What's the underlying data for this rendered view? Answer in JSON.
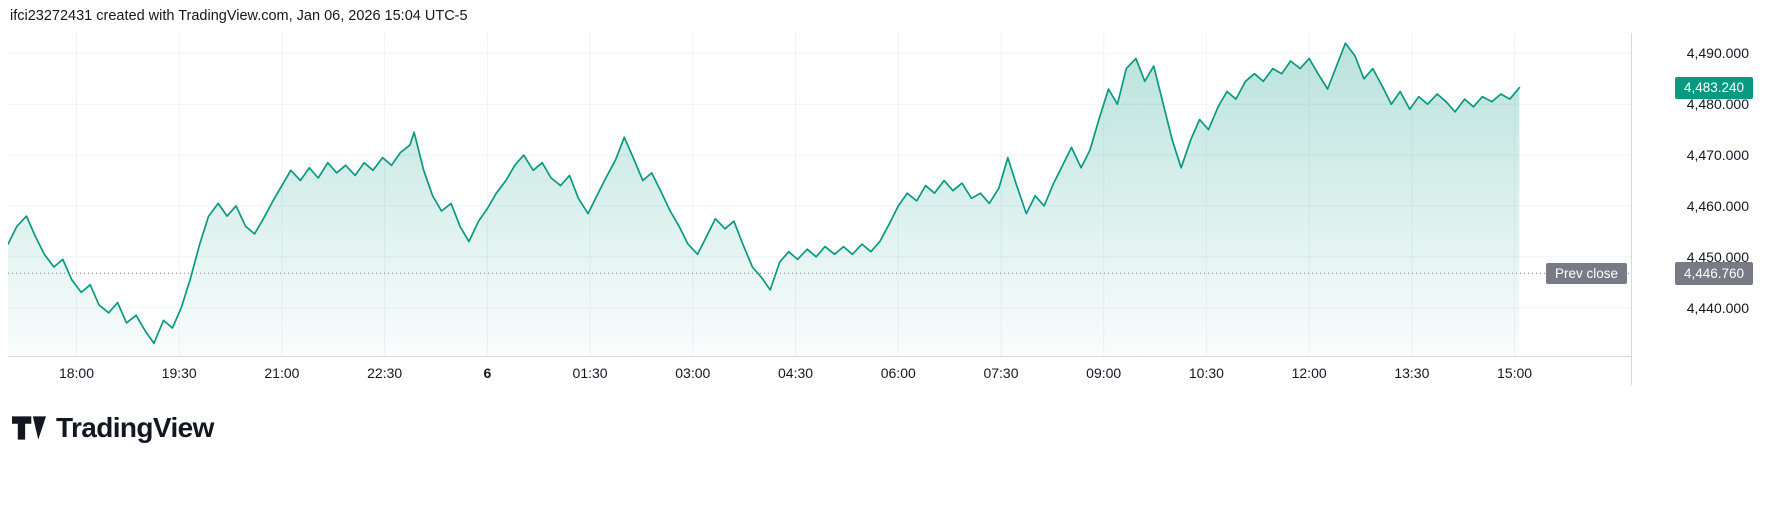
{
  "header": {
    "attribution": "ifci23272431 created with TradingView.com, Jan 06, 2026 15:04 UTC-5"
  },
  "footer": {
    "logo_text": "TradingView"
  },
  "chart_data": {
    "type": "area",
    "line_color": "#089981",
    "area_top_color": "#089981",
    "last_price": 4483.24,
    "last_price_label": "4,483.240",
    "prev_close": {
      "label": "Prev close",
      "value": 4446.76,
      "value_label": "4,446.760",
      "color": "#787b86"
    },
    "y_axis": {
      "min": 4430.5,
      "max": 4494,
      "ticks": [
        {
          "value": 4440,
          "label": "4,440.000"
        },
        {
          "value": 4450,
          "label": "4,450.000"
        },
        {
          "value": 4460,
          "label": "4,460.000"
        },
        {
          "value": 4470,
          "label": "4,470.000"
        },
        {
          "value": 4480,
          "label": "4,480.000"
        },
        {
          "value": 4490,
          "label": "4,490.000"
        }
      ]
    },
    "x_axis": {
      "start_time": "17:00",
      "min_hours": 0,
      "max_hours": 23.7,
      "ticks": [
        {
          "h": 1,
          "label": "18:00"
        },
        {
          "h": 2.5,
          "label": "19:30"
        },
        {
          "h": 4,
          "label": "21:00"
        },
        {
          "h": 5.5,
          "label": "22:30"
        },
        {
          "h": 7,
          "label": "6",
          "emphasis": true
        },
        {
          "h": 8.5,
          "label": "01:30"
        },
        {
          "h": 10,
          "label": "03:00"
        },
        {
          "h": 11.5,
          "label": "04:30"
        },
        {
          "h": 13,
          "label": "06:00"
        },
        {
          "h": 14.5,
          "label": "07:30"
        },
        {
          "h": 16,
          "label": "09:00"
        },
        {
          "h": 17.5,
          "label": "10:30"
        },
        {
          "h": 19,
          "label": "12:00"
        },
        {
          "h": 20.5,
          "label": "13:30"
        },
        {
          "h": 22,
          "label": "15:00"
        }
      ]
    },
    "points": [
      [
        0,
        4452.5
      ],
      [
        0.13,
        4456
      ],
      [
        0.27,
        4458
      ],
      [
        0.4,
        4454
      ],
      [
        0.53,
        4450.5
      ],
      [
        0.67,
        4448
      ],
      [
        0.8,
        4449.5
      ],
      [
        0.93,
        4445.5
      ],
      [
        1.07,
        4443
      ],
      [
        1.2,
        4444.5
      ],
      [
        1.33,
        4440.5
      ],
      [
        1.47,
        4439
      ],
      [
        1.6,
        4441
      ],
      [
        1.73,
        4437
      ],
      [
        1.87,
        4438.5
      ],
      [
        2,
        4435.5
      ],
      [
        2.13,
        4433
      ],
      [
        2.27,
        4437.5
      ],
      [
        2.4,
        4436
      ],
      [
        2.53,
        4440
      ],
      [
        2.67,
        4446
      ],
      [
        2.8,
        4452.5
      ],
      [
        2.93,
        4458
      ],
      [
        3.07,
        4460.5
      ],
      [
        3.2,
        4458
      ],
      [
        3.33,
        4460
      ],
      [
        3.47,
        4456
      ],
      [
        3.6,
        4454.5
      ],
      [
        3.73,
        4457.5
      ],
      [
        3.87,
        4461
      ],
      [
        4,
        4464
      ],
      [
        4.13,
        4467
      ],
      [
        4.27,
        4465
      ],
      [
        4.4,
        4467.5
      ],
      [
        4.53,
        4465.5
      ],
      [
        4.67,
        4468.5
      ],
      [
        4.8,
        4466.5
      ],
      [
        4.93,
        4468
      ],
      [
        5.07,
        4466
      ],
      [
        5.2,
        4468.5
      ],
      [
        5.33,
        4467
      ],
      [
        5.47,
        4469.5
      ],
      [
        5.6,
        4468
      ],
      [
        5.73,
        4470.5
      ],
      [
        5.87,
        4472
      ],
      [
        5.93,
        4474.5
      ],
      [
        6.07,
        4467
      ],
      [
        6.2,
        4462
      ],
      [
        6.33,
        4459
      ],
      [
        6.47,
        4460.5
      ],
      [
        6.6,
        4456
      ],
      [
        6.73,
        4453
      ],
      [
        6.87,
        4457
      ],
      [
        7,
        4459.5
      ],
      [
        7.13,
        4462.5
      ],
      [
        7.27,
        4465
      ],
      [
        7.4,
        4468
      ],
      [
        7.53,
        4470
      ],
      [
        7.67,
        4467
      ],
      [
        7.8,
        4468.5
      ],
      [
        7.93,
        4465.5
      ],
      [
        8.07,
        4464
      ],
      [
        8.2,
        4466
      ],
      [
        8.33,
        4461.5
      ],
      [
        8.47,
        4458.5
      ],
      [
        8.6,
        4462
      ],
      [
        8.73,
        4465.5
      ],
      [
        8.87,
        4469
      ],
      [
        9,
        4473.5
      ],
      [
        9.13,
        4469.5
      ],
      [
        9.27,
        4465
      ],
      [
        9.4,
        4466.5
      ],
      [
        9.53,
        4463
      ],
      [
        9.67,
        4459
      ],
      [
        9.8,
        4456
      ],
      [
        9.93,
        4452.5
      ],
      [
        10.07,
        4450.5
      ],
      [
        10.2,
        4454
      ],
      [
        10.33,
        4457.5
      ],
      [
        10.47,
        4455.5
      ],
      [
        10.6,
        4457
      ],
      [
        10.73,
        4452.5
      ],
      [
        10.87,
        4448
      ],
      [
        11,
        4446
      ],
      [
        11.13,
        4443.5
      ],
      [
        11.27,
        4449
      ],
      [
        11.4,
        4451
      ],
      [
        11.53,
        4449.5
      ],
      [
        11.67,
        4451.5
      ],
      [
        11.8,
        4450
      ],
      [
        11.93,
        4452
      ],
      [
        12.07,
        4450.5
      ],
      [
        12.2,
        4452
      ],
      [
        12.33,
        4450.5
      ],
      [
        12.47,
        4452.5
      ],
      [
        12.6,
        4451
      ],
      [
        12.73,
        4453
      ],
      [
        12.87,
        4456.5
      ],
      [
        13,
        4460
      ],
      [
        13.13,
        4462.5
      ],
      [
        13.27,
        4461
      ],
      [
        13.4,
        4464
      ],
      [
        13.53,
        4462.5
      ],
      [
        13.67,
        4465
      ],
      [
        13.8,
        4463
      ],
      [
        13.93,
        4464.5
      ],
      [
        14.07,
        4461.5
      ],
      [
        14.2,
        4462.5
      ],
      [
        14.33,
        4460.5
      ],
      [
        14.47,
        4463.5
      ],
      [
        14.6,
        4469.5
      ],
      [
        14.73,
        4464
      ],
      [
        14.87,
        4458.5
      ],
      [
        15,
        4462
      ],
      [
        15.13,
        4460
      ],
      [
        15.27,
        4464.5
      ],
      [
        15.4,
        4468
      ],
      [
        15.53,
        4471.5
      ],
      [
        15.67,
        4467.5
      ],
      [
        15.8,
        4471
      ],
      [
        15.93,
        4477
      ],
      [
        16.07,
        4483
      ],
      [
        16.2,
        4480
      ],
      [
        16.33,
        4487
      ],
      [
        16.47,
        4489
      ],
      [
        16.6,
        4484.5
      ],
      [
        16.73,
        4487.5
      ],
      [
        16.87,
        4480
      ],
      [
        17,
        4473
      ],
      [
        17.13,
        4467.5
      ],
      [
        17.27,
        4473
      ],
      [
        17.4,
        4477
      ],
      [
        17.53,
        4475
      ],
      [
        17.67,
        4479.5
      ],
      [
        17.8,
        4482.5
      ],
      [
        17.93,
        4481
      ],
      [
        18.07,
        4484.5
      ],
      [
        18.2,
        4486
      ],
      [
        18.33,
        4484.5
      ],
      [
        18.47,
        4487
      ],
      [
        18.6,
        4486
      ],
      [
        18.73,
        4488.5
      ],
      [
        18.87,
        4487
      ],
      [
        19,
        4489
      ],
      [
        19.13,
        4486
      ],
      [
        19.27,
        4483
      ],
      [
        19.4,
        4487.5
      ],
      [
        19.53,
        4492
      ],
      [
        19.67,
        4489.5
      ],
      [
        19.8,
        4485
      ],
      [
        19.93,
        4487
      ],
      [
        20.07,
        4483.5
      ],
      [
        20.2,
        4480
      ],
      [
        20.33,
        4482.5
      ],
      [
        20.47,
        4479
      ],
      [
        20.6,
        4481.5
      ],
      [
        20.73,
        4480
      ],
      [
        20.87,
        4482
      ],
      [
        21,
        4480.5
      ],
      [
        21.13,
        4478.5
      ],
      [
        21.27,
        4481
      ],
      [
        21.4,
        4479.5
      ],
      [
        21.53,
        4481.5
      ],
      [
        21.67,
        4480.5
      ],
      [
        21.8,
        4482
      ],
      [
        21.93,
        4481
      ],
      [
        22.07,
        4483.24
      ]
    ]
  }
}
